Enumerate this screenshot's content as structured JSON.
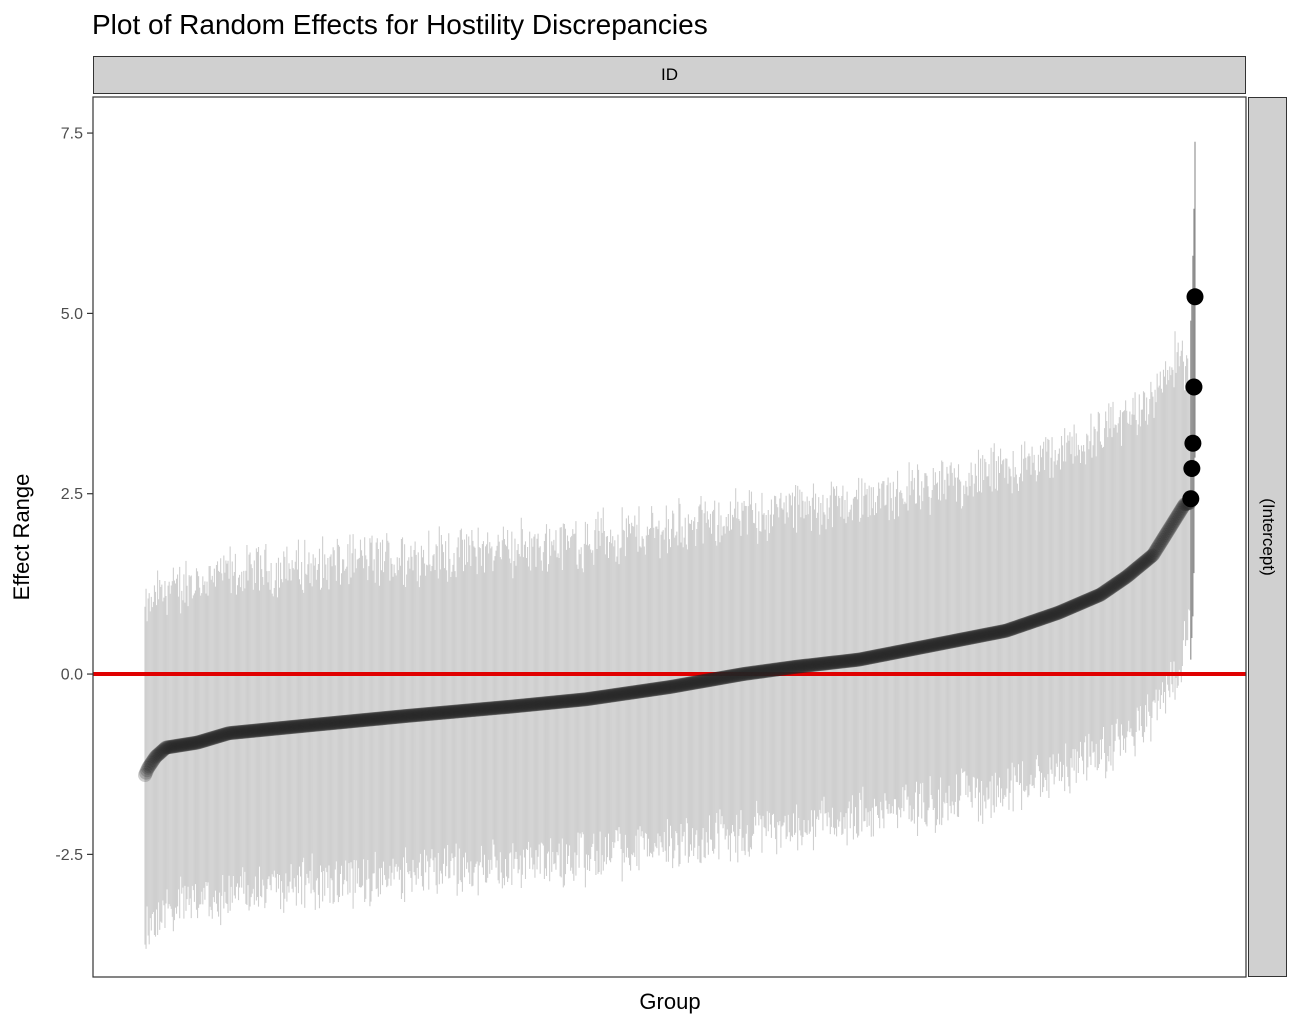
{
  "chart_data": {
    "type": "scatter",
    "title": "Plot of Random Effects for Hostility Discrepancies",
    "xlabel": "Group",
    "ylabel": "Effect Range",
    "facet_top": "ID",
    "facet_right": "(Intercept)",
    "ylim": [
      -4.2,
      8.0
    ],
    "yticks": [
      -2.5,
      0.0,
      2.5,
      5.0,
      7.5
    ],
    "ytick_labels": [
      "-2.5",
      "0.0",
      "2.5",
      "5.0",
      "7.5"
    ],
    "grid": false,
    "reference_line": {
      "y": 0.0,
      "color": "#e00000"
    },
    "n_groups": 1000,
    "point_color": "#262626",
    "interval_color": "#cfcfcf",
    "estimate_quantiles": [
      [
        0.0,
        -1.4
      ],
      [
        0.003,
        -1.3
      ],
      [
        0.01,
        -1.15
      ],
      [
        0.02,
        -1.02
      ],
      [
        0.05,
        -0.95
      ],
      [
        0.08,
        -0.82
      ],
      [
        0.15,
        -0.72
      ],
      [
        0.25,
        -0.58
      ],
      [
        0.35,
        -0.45
      ],
      [
        0.42,
        -0.35
      ],
      [
        0.5,
        -0.18
      ],
      [
        0.57,
        0.0
      ],
      [
        0.62,
        0.1
      ],
      [
        0.68,
        0.2
      ],
      [
        0.75,
        0.4
      ],
      [
        0.82,
        0.6
      ],
      [
        0.87,
        0.85
      ],
      [
        0.91,
        1.1
      ],
      [
        0.935,
        1.35
      ],
      [
        0.96,
        1.65
      ],
      [
        0.975,
        2.0
      ],
      [
        0.99,
        2.35
      ],
      [
        1.0,
        2.4
      ]
    ],
    "interval_halfwidth": 2.2,
    "highlighted_points": [
      {
        "rank": 996,
        "estimate": 2.43,
        "lower": 0.2,
        "upper": 4.9
      },
      {
        "rank": 997,
        "estimate": 2.85,
        "lower": 0.5,
        "upper": 5.3
      },
      {
        "rank": 998,
        "estimate": 3.2,
        "lower": 0.8,
        "upper": 5.8
      },
      {
        "rank": 999,
        "estimate": 3.98,
        "lower": 1.4,
        "upper": 6.45
      },
      {
        "rank": 1000,
        "estimate": 5.23,
        "lower": 3.0,
        "upper": 7.38
      }
    ]
  }
}
